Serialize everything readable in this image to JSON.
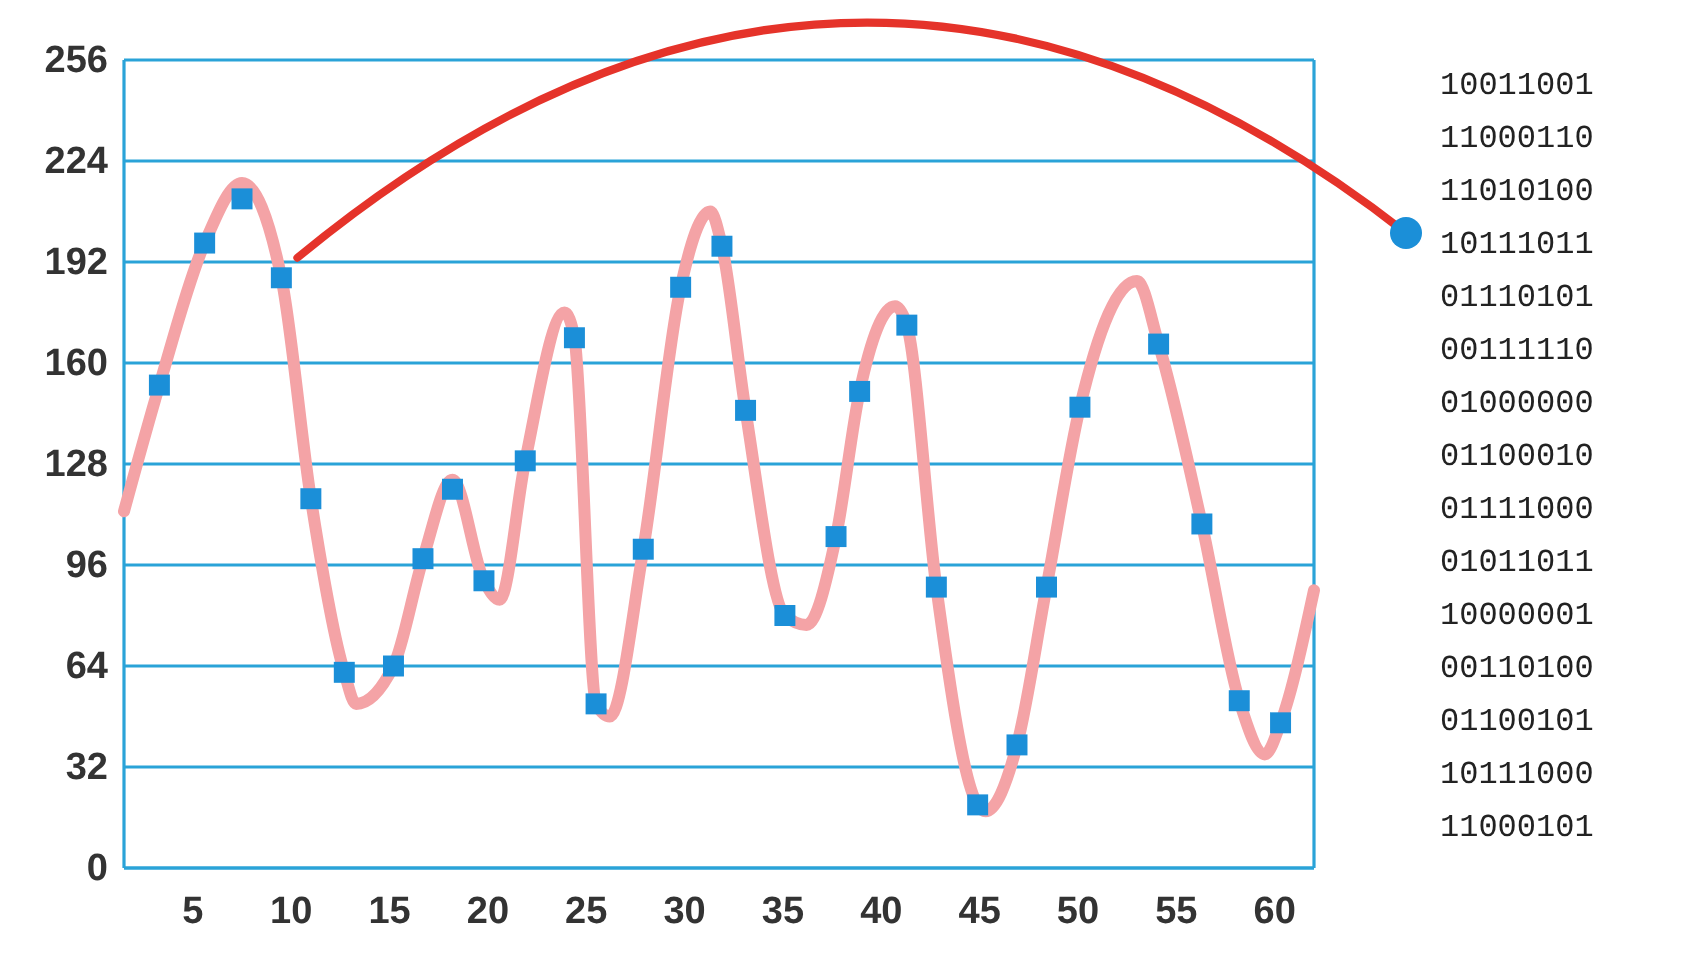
{
  "chart_data": {
    "type": "line",
    "xlim": [
      1.5,
      62
    ],
    "ylim": [
      0,
      256
    ],
    "xticks": [
      5,
      10,
      15,
      20,
      25,
      30,
      35,
      40,
      45,
      50,
      55,
      60
    ],
    "yticks": [
      0,
      32,
      64,
      96,
      128,
      160,
      192,
      224,
      256
    ],
    "grid": "y",
    "series": [
      {
        "type": "line",
        "color": "#f4a3a6",
        "marker": "none",
        "x": [
          1.5,
          3.3,
          5.6,
          7.5,
          9.5,
          11.0,
          12.7,
          13.3,
          15.2,
          16.7,
          18.2,
          19.8,
          20.6,
          21.9,
          23.9,
          24.4,
          25.5,
          26.2,
          27.9,
          29.8,
          31.3,
          31.9,
          33.1,
          35.1,
          36.2,
          37.7,
          38.9,
          40.7,
          41.3,
          42.8,
          44.9,
          45.3,
          46.9,
          48.4,
          50.1,
          53.0,
          54.1,
          56.3,
          58.2,
          59.5,
          60.3,
          62
        ],
        "values": [
          113,
          153,
          198,
          217,
          187,
          117,
          62,
          52,
          64,
          98,
          123,
          91,
          85,
          129,
          176,
          168,
          52,
          48,
          101,
          184,
          208,
          197,
          145,
          80,
          77,
          105,
          151,
          178,
          172,
          89,
          20,
          18,
          39,
          89,
          146,
          186,
          166,
          109,
          53,
          36,
          46,
          88
        ]
      },
      {
        "type": "scatter",
        "color": "#1b8fd8",
        "marker": "square",
        "x": [
          3.3,
          5.6,
          7.5,
          9.5,
          11.0,
          12.7,
          15.2,
          16.7,
          18.2,
          19.8,
          21.9,
          24.4,
          25.5,
          27.9,
          29.8,
          31.9,
          33.1,
          35.1,
          37.7,
          38.9,
          41.3,
          42.8,
          44.9,
          46.9,
          48.4,
          50.1,
          54.1,
          56.3,
          58.2,
          60.3
        ],
        "values": [
          153,
          198,
          212,
          187,
          117,
          62,
          64,
          98,
          120,
          91,
          129,
          168,
          52,
          101,
          184,
          197,
          145,
          80,
          105,
          151,
          172,
          89,
          20,
          39,
          89,
          146,
          166,
          109,
          53,
          46
        ]
      }
    ],
    "annotations": [
      "10011001",
      "11000110",
      "11010100",
      "10111011",
      "01110101",
      "00111110",
      "01000000",
      "01100010",
      "01111000",
      "01011011",
      "10000001",
      "00110100",
      "01100101",
      "10111000",
      "11000101"
    ]
  }
}
